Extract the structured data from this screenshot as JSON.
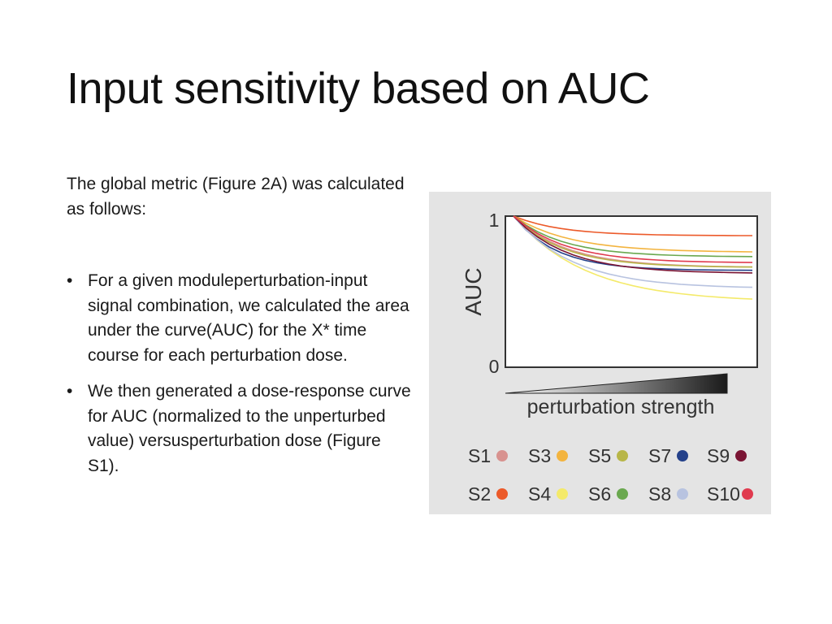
{
  "slide": {
    "title": "Input sensitivity based on AUC",
    "intro": "The global metric (Figure 2A) was calculated as follows:",
    "bullets": [
      "For a given moduleperturbation-input signal combination, we calculated the area under the curve(AUC) for the X* time course for each perturbation dose.",
      "We then generated a dose-response curve for AUC (normalized to the unperturbed value) versusperturbation dose (Figure S1)."
    ],
    "bullet_glyph": "•"
  },
  "chart_data": {
    "type": "line",
    "title": "",
    "xlabel": "perturbation strength",
    "ylabel": "AUC",
    "y_ticks": [
      "1",
      "0"
    ],
    "ylim": [
      0,
      1
    ],
    "xlim": [
      0,
      1
    ],
    "grid": false,
    "legend_position": "bottom",
    "x": [
      0,
      0.05,
      0.1,
      0.15,
      0.2,
      0.25,
      0.3,
      0.35,
      0.4,
      0.45,
      0.5,
      0.55,
      0.6,
      0.65,
      0.7,
      0.75,
      0.8,
      0.85,
      0.9,
      0.95,
      1.0
    ],
    "series_params": [
      {
        "name": "S1",
        "color": "#d8928f",
        "asymptote": 0.66,
        "k": 4.5
      },
      {
        "name": "S2",
        "color": "#ec5a2a",
        "asymptote": 0.87,
        "k": 5.0
      },
      {
        "name": "S3",
        "color": "#f3b43f",
        "asymptote": 0.76,
        "k": 4.2
      },
      {
        "name": "S4",
        "color": "#f4ea6a",
        "asymptote": 0.43,
        "k": 3.3
      },
      {
        "name": "S5",
        "color": "#b8b648",
        "asymptote": 0.66,
        "k": 4.8
      },
      {
        "name": "S6",
        "color": "#6aa84f",
        "asymptote": 0.73,
        "k": 4.8
      },
      {
        "name": "S7",
        "color": "#24418a",
        "asymptote": 0.64,
        "k": 5.6
      },
      {
        "name": "S8",
        "color": "#b8c3e0",
        "asymptote": 0.52,
        "k": 4.0
      },
      {
        "name": "S9",
        "color": "#7a1433",
        "asymptote": 0.62,
        "k": 4.5
      },
      {
        "name": "S10",
        "color": "#e03a4e",
        "asymptote": 0.69,
        "k": 4.6
      }
    ],
    "wedge_gradient": [
      "#ffffff",
      "#1a1a1a"
    ]
  }
}
